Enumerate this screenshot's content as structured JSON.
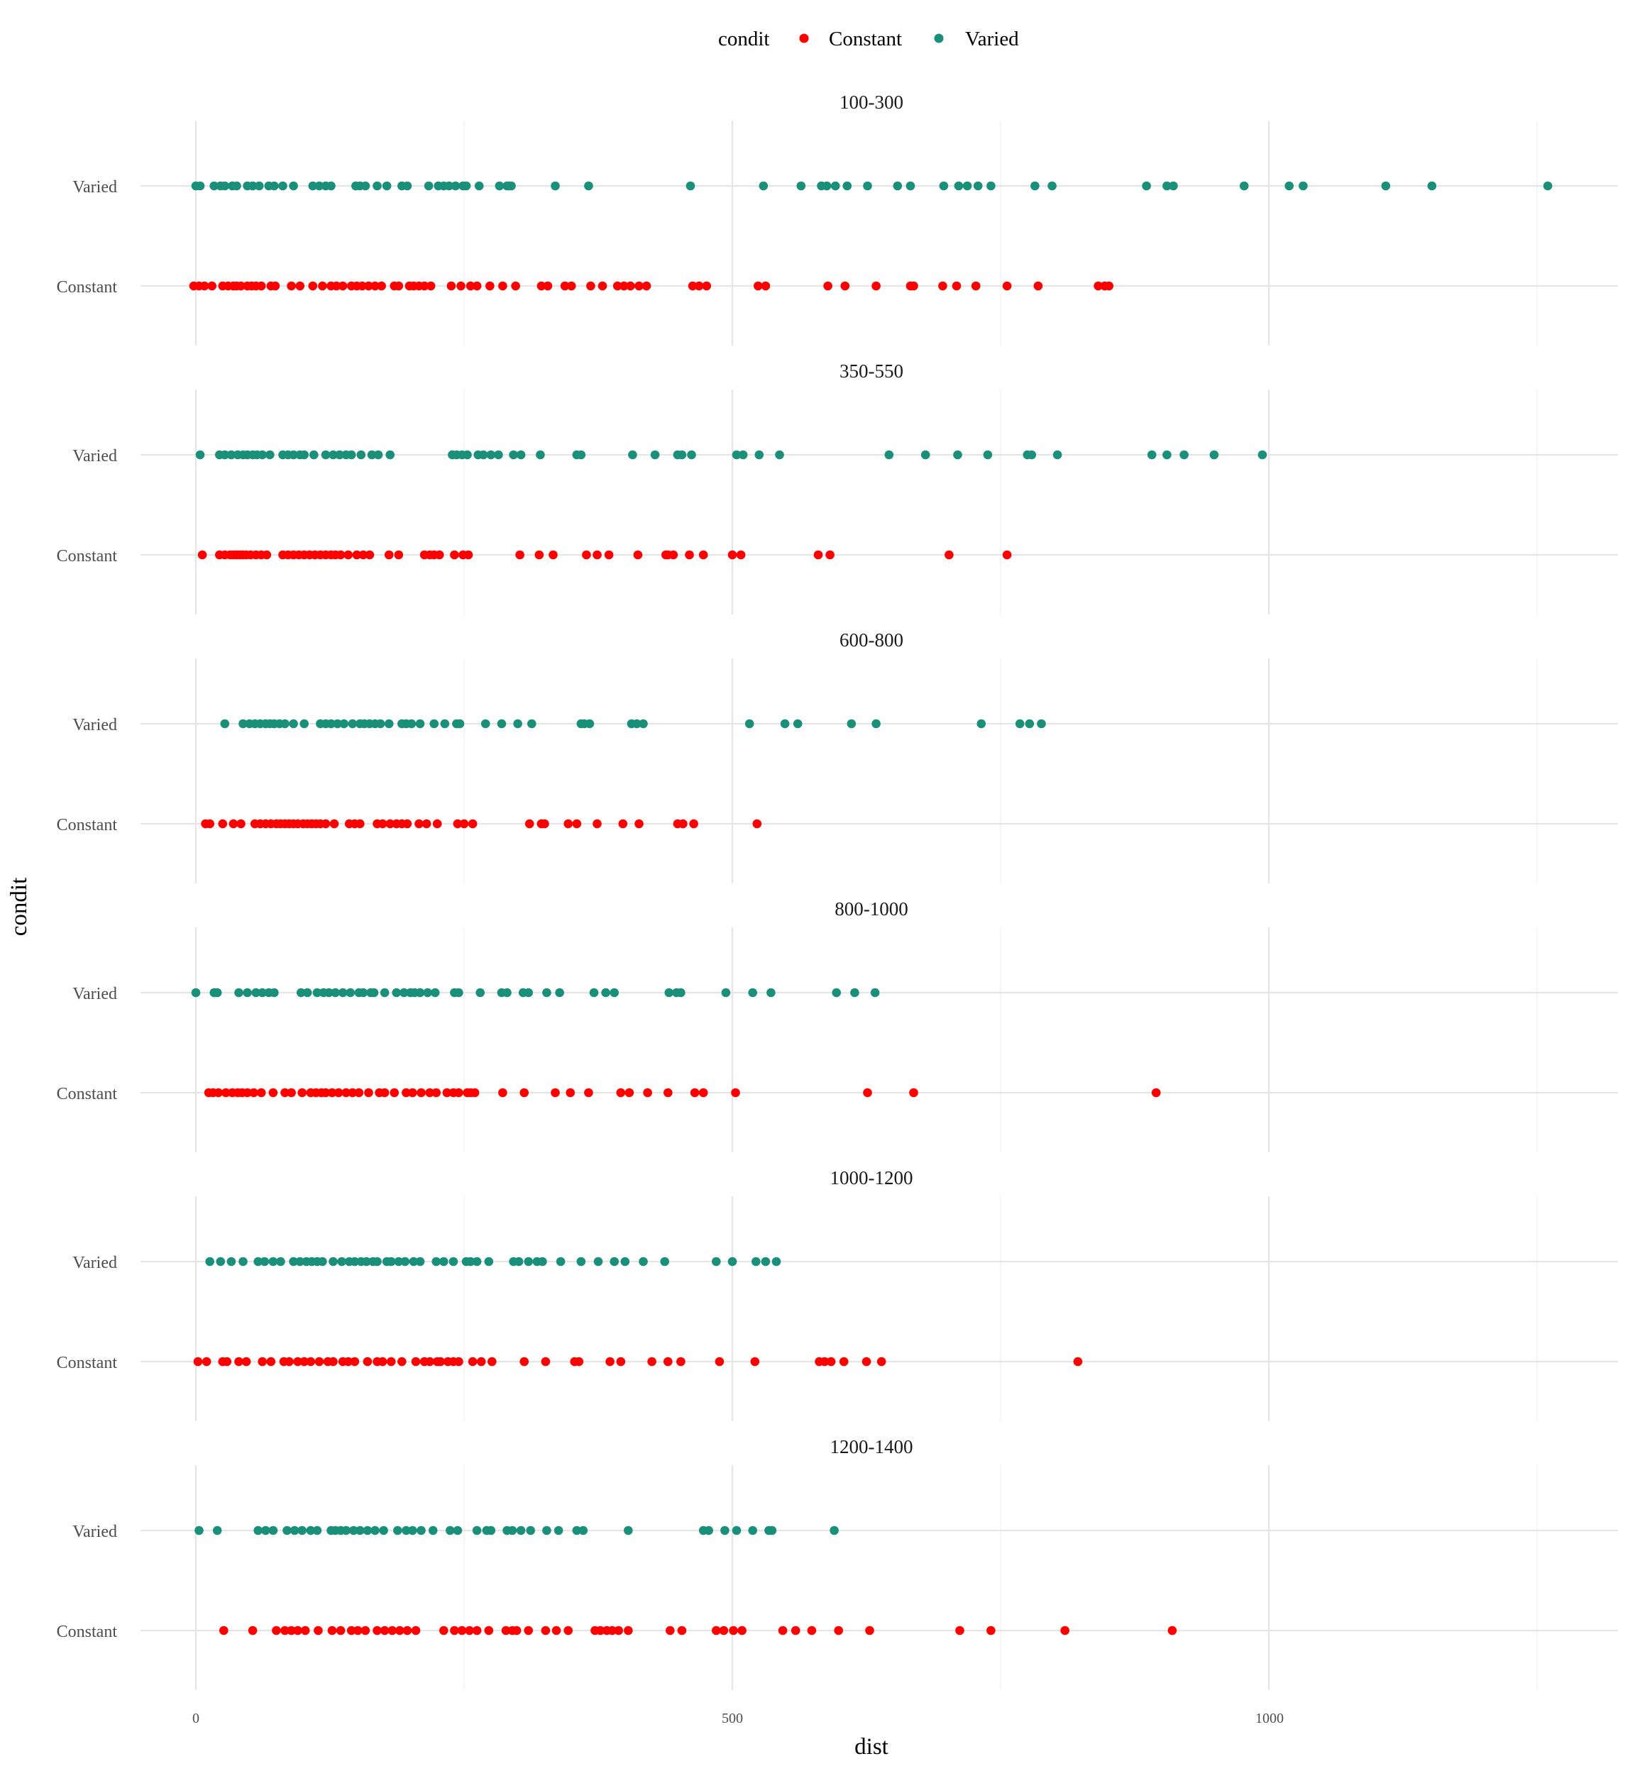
{
  "legend": {
    "title": "condit",
    "items": [
      {
        "label": "Constant",
        "color": "#ff0000"
      },
      {
        "label": "Varied",
        "color": "#1a8f7a"
      }
    ]
  },
  "axes": {
    "xlabel": "dist",
    "ylabel": "condit",
    "xticks": [
      "0",
      "500",
      "1000"
    ]
  },
  "chart_data": {
    "type": "scatter",
    "x_axis": {
      "label": "dist",
      "range": [
        -50,
        1330
      ],
      "major_ticks": [
        0,
        500,
        1000
      ],
      "minor_gridlines": [
        250,
        750,
        1250
      ]
    },
    "y_categories": [
      "Varied",
      "Constant"
    ],
    "grid": true,
    "legend_position": "top",
    "facets": [
      {
        "title": "100-300",
        "series": [
          {
            "name": "Varied",
            "x": [
              0,
              4,
              17,
              23,
              27,
              34,
              38,
              48,
              53,
              59,
              68,
              73,
              81,
              91,
              109,
              115,
              121,
              126,
              149,
              153,
              158,
              169,
              178,
              192,
              197,
              217,
              226,
              231,
              236,
              242,
              249,
              252,
              264,
              283,
              290,
              292,
              294,
              335,
              366,
              461,
              529,
              564,
              583,
              588,
              596,
              607,
              626,
              654,
              666,
              697,
              711,
              719,
              729,
              741,
              782,
              798,
              886,
              905,
              911,
              977,
              1019,
              1032,
              1109,
              1152,
              1260
            ],
            "y": "Varied"
          },
          {
            "name": "Constant",
            "x": [
              -2,
              3,
              8,
              15,
              25,
              30,
              35,
              38,
              42,
              48,
              52,
              56,
              61,
              70,
              74,
              89,
              97,
              109,
              118,
              126,
              131,
              137,
              145,
              150,
              155,
              161,
              167,
              173,
              185,
              189,
              199,
              203,
              208,
              213,
              219,
              238,
              247,
              256,
              262,
              274,
              286,
              298,
              322,
              328,
              344,
              350,
              368,
              379,
              393,
              399,
              405,
              413,
              420,
              463,
              469,
              476,
              524,
              531,
              589,
              605,
              634,
              666,
              669,
              696,
              709,
              727,
              756,
              785,
              841,
              847,
              851
            ],
            "y": "Constant"
          }
        ]
      },
      {
        "title": "350-550",
        "series": [
          {
            "name": "Varied",
            "x": [
              4,
              22,
              27,
              33,
              39,
              44,
              48,
              53,
              57,
              62,
              69,
              81,
              86,
              91,
              97,
              101,
              110,
              121,
              128,
              134,
              140,
              145,
              154,
              164,
              170,
              181,
              239,
              243,
              248,
              253,
              263,
              268,
              275,
              282,
              296,
              303,
              321,
              355,
              359,
              407,
              428,
              449,
              453,
              462,
              504,
              510,
              525,
              544,
              646,
              680,
              710,
              738,
              775,
              779,
              803,
              891,
              905,
              921,
              949,
              994
            ],
            "y": "Varied"
          },
          {
            "name": "Constant",
            "x": [
              6,
              22,
              27,
              32,
              35,
              38,
              41,
              44,
              47,
              51,
              56,
              61,
              66,
              81,
              86,
              91,
              96,
              101,
              106,
              111,
              116,
              121,
              126,
              130,
              135,
              142,
              150,
              156,
              162,
              180,
              189,
              213,
              218,
              222,
              227,
              241,
              249,
              254,
              302,
              320,
              333,
              364,
              374,
              385,
              412,
              438,
              440,
              445,
              460,
              473,
              500,
              508,
              580,
              591,
              702,
              756
            ],
            "y": "Constant"
          }
        ]
      },
      {
        "title": "600-800",
        "series": [
          {
            "name": "Varied",
            "x": [
              27,
              44,
              50,
              55,
              60,
              65,
              69,
              73,
              78,
              83,
              91,
              101,
              116,
              121,
              126,
              132,
              138,
              146,
              153,
              157,
              162,
              167,
              172,
              180,
              192,
              196,
              201,
              209,
              222,
              232,
              243,
              246,
              270,
              285,
              300,
              313,
              359,
              362,
              367,
              406,
              411,
              417,
              516,
              549,
              561,
              611,
              634,
              732,
              768,
              777,
              788
            ],
            "y": "Varied"
          },
          {
            "name": "Constant",
            "x": [
              9,
              13,
              25,
              35,
              42,
              55,
              60,
              65,
              70,
              75,
              79,
              83,
              87,
              91,
              95,
              100,
              104,
              108,
              112,
              116,
              121,
              129,
              143,
              148,
              153,
              169,
              174,
              181,
              187,
              192,
              197,
              208,
              215,
              225,
              244,
              250,
              258,
              311,
              322,
              325,
              347,
              355,
              374,
              398,
              413,
              449,
              454,
              464,
              523
            ],
            "y": "Constant"
          }
        ]
      },
      {
        "title": "800-1000",
        "series": [
          {
            "name": "Varied",
            "x": [
              0,
              17,
              20,
              40,
              48,
              56,
              62,
              68,
              73,
              98,
              104,
              113,
              119,
              124,
              130,
              137,
              144,
              152,
              156,
              163,
              166,
              176,
              187,
              194,
              200,
              204,
              209,
              216,
              223,
              241,
              245,
              265,
              285,
              290,
              305,
              310,
              327,
              339,
              371,
              382,
              390,
              441,
              448,
              452,
              494,
              519,
              536,
              597,
              614,
              633
            ],
            "y": "Varied"
          },
          {
            "name": "Constant",
            "x": [
              12,
              16,
              21,
              28,
              34,
              39,
              43,
              48,
              54,
              61,
              72,
              83,
              89,
              99,
              107,
              112,
              117,
              121,
              127,
              133,
              140,
              146,
              152,
              161,
              171,
              176,
              185,
              196,
              202,
              210,
              218,
              224,
              234,
              240,
              245,
              253,
              256,
              260,
              286,
              306,
              335,
              349,
              366,
              396,
              404,
              421,
              440,
              465,
              473,
              503,
              626,
              669,
              895
            ],
            "y": "Constant"
          }
        ]
      },
      {
        "title": "1000-1200",
        "series": [
          {
            "name": "Varied",
            "x": [
              13,
              23,
              33,
              44,
              58,
              64,
              72,
              79,
              91,
              97,
              103,
              108,
              113,
              118,
              128,
              136,
              143,
              148,
              154,
              159,
              165,
              169,
              178,
              182,
              189,
              195,
              203,
              209,
              224,
              231,
              240,
              252,
              256,
              262,
              273,
              296,
              301,
              310,
              318,
              323,
              340,
              359,
              375,
              390,
              400,
              417,
              437,
              485,
              500,
              522,
              531,
              541
            ],
            "y": "Varied"
          },
          {
            "name": "Constant",
            "x": [
              2,
              10,
              25,
              29,
              40,
              47,
              62,
              70,
              82,
              87,
              95,
              101,
              107,
              115,
              123,
              128,
              137,
              142,
              148,
              160,
              169,
              174,
              182,
              192,
              205,
              213,
              218,
              225,
              228,
              235,
              240,
              245,
              258,
              266,
              276,
              306,
              326,
              353,
              357,
              386,
              396,
              425,
              440,
              452,
              488,
              521,
              581,
              586,
              592,
              604,
              625,
              639,
              822
            ],
            "y": "Constant"
          }
        ]
      },
      {
        "title": "1200-1400",
        "series": [
          {
            "name": "Varied",
            "x": [
              3,
              20,
              58,
              65,
              72,
              85,
              92,
              99,
              107,
              113,
              126,
              130,
              135,
              140,
              147,
              153,
              160,
              167,
              175,
              188,
              196,
              202,
              210,
              221,
              237,
              244,
              262,
              271,
              275,
              290,
              295,
              303,
              312,
              327,
              338,
              355,
              361,
              403,
              473,
              478,
              493,
              504,
              519,
              534,
              537,
              595
            ],
            "y": "Varied"
          },
          {
            "name": "Constant",
            "x": [
              26,
              53,
              75,
              83,
              89,
              95,
              102,
              114,
              127,
              135,
              145,
              151,
              158,
              169,
              176,
              183,
              190,
              197,
              205,
              231,
              241,
              248,
              255,
              262,
              273,
              289,
              295,
              299,
              310,
              326,
              336,
              347,
              372,
              377,
              383,
              388,
              394,
              403,
              442,
              453,
              485,
              492,
              501,
              509,
              547,
              559,
              574,
              599,
              628,
              712,
              741,
              810,
              910
            ],
            "y": "Constant"
          }
        ]
      }
    ]
  }
}
